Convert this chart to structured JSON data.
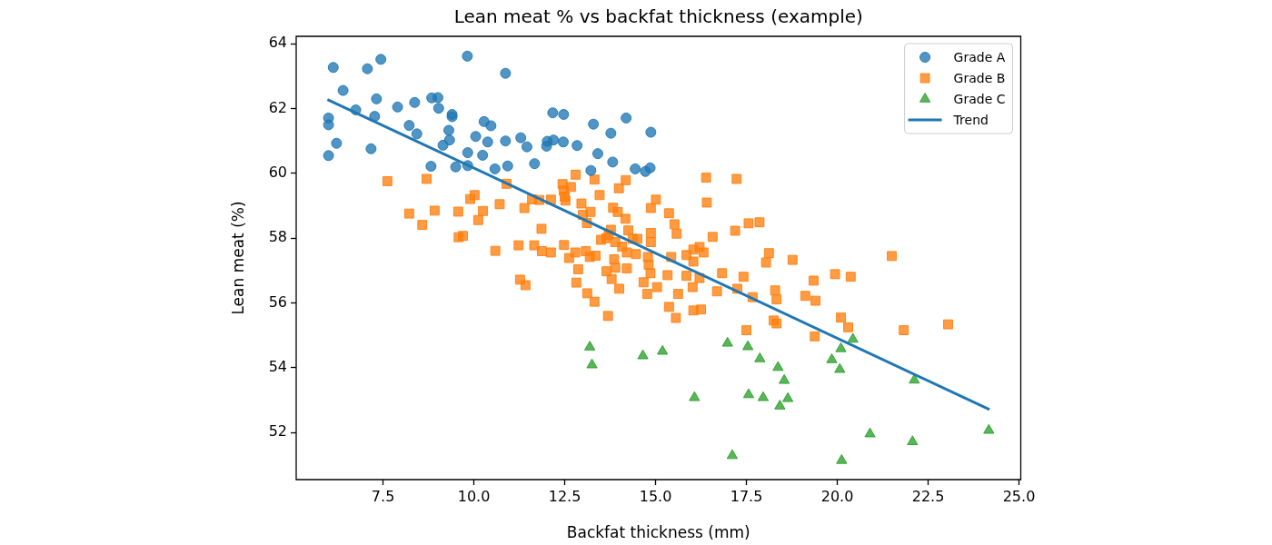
{
  "chart_data": {
    "type": "scatter",
    "title": "Lean meat % vs backfat thickness (example)",
    "xlabel": "Backfat thickness (mm)",
    "ylabel": "Lean meat (%)",
    "xlim": [
      5.11,
      25.05
    ],
    "xticks": [
      7.5,
      {
        "value": 10,
        "label": "10.0"
      },
      12.5,
      {
        "value": 15,
        "label": "15.0"
      },
      17.5,
      {
        "value": 20,
        "label": "20.0"
      },
      22.5,
      {
        "value": 25,
        "label": "25.0"
      }
    ],
    "ylim": [
      50.55,
      64.23
    ],
    "yticks": [
      52,
      54,
      56,
      58,
      60,
      62,
      64
    ],
    "grid": false,
    "legend": "top right",
    "series": [
      {
        "name": "Grade A",
        "color": "#1f77b4",
        "marker": "circle",
        "x": [
          6.13,
          7.07,
          7.44,
          9.82,
          10.87,
          6.4,
          7.32,
          7.9,
          8.37,
          8.84,
          9.01,
          9.03,
          9.4,
          9.4,
          6.75,
          7.27,
          6.0,
          6.0,
          8.22,
          8.43,
          9.31,
          10.28,
          10.47,
          9.33,
          9.15,
          10.05,
          10.38,
          10.87,
          11.29,
          11.46,
          6.22,
          7.17,
          6.0,
          9.83,
          10.24,
          8.82,
          9.5,
          9.83,
          10.58,
          10.93,
          11.67,
          12.17,
          12.47,
          13.29,
          14.19,
          13.77,
          14.87,
          12.0,
          12.02,
          12.19,
          12.46,
          12.84,
          13.41,
          13.82,
          13.22,
          14.44,
          14.72,
          14.85
        ],
        "values": [
          63.27,
          63.23,
          63.52,
          63.62,
          63.09,
          62.56,
          62.3,
          62.05,
          62.19,
          62.33,
          62.34,
          62.01,
          61.82,
          61.75,
          61.96,
          61.76,
          61.71,
          61.5,
          61.48,
          61.22,
          61.33,
          61.6,
          61.47,
          61.03,
          60.87,
          61.14,
          60.97,
          61.0,
          61.1,
          60.82,
          60.93,
          60.76,
          60.55,
          60.64,
          60.56,
          60.22,
          60.2,
          60.24,
          60.14,
          60.23,
          60.3,
          61.87,
          61.82,
          61.52,
          61.71,
          61.24,
          61.27,
          60.84,
          60.99,
          61.03,
          60.97,
          60.86,
          60.61,
          60.35,
          60.09,
          60.14,
          60.06,
          60.17
        ]
      },
      {
        "name": "Grade B",
        "color": "#ff7f0e",
        "marker": "square",
        "x": [
          7.62,
          8.7,
          10.9,
          10.02,
          9.9,
          8.22,
          8.92,
          9.57,
          10.25,
          8.58,
          10.12,
          10.71,
          11.39,
          9.58,
          9.7,
          10.59,
          11.23,
          11.66,
          11.27,
          11.42,
          12.8,
          13.32,
          14.18,
          12.44,
          12.67,
          12.47,
          12.5,
          12.52,
          13.99,
          13.46,
          11.6,
          11.8,
          12.12,
          12.96,
          13.21,
          13.0,
          13.11,
          13.83,
          13.96,
          14.17,
          14.87,
          15.01,
          15.37,
          15.52,
          15.58,
          16.39,
          17.23,
          16.41,
          16.57,
          17.19,
          17.56,
          17.86,
          11.86,
          13.77,
          13.71,
          14.25,
          13.5,
          13.64,
          13.89,
          14.37,
          14.5,
          14.87,
          14.87,
          12.48,
          12.79,
          13.08,
          13.35,
          12.62,
          13.19,
          14.08,
          14.21,
          14.46,
          13.86,
          14.79,
          15.43,
          15.85,
          16.04,
          16.21,
          16.32,
          11.87,
          12.12,
          18.12,
          18.04,
          13.89,
          14.21,
          14.81,
          14.86,
          12.87,
          13.65,
          13.79,
          12.82,
          14.0,
          14.67,
          15.33,
          15.04,
          14.77,
          15.62,
          15.85,
          16.02,
          16.21,
          16.04,
          13.12,
          13.32,
          13.69,
          15.37,
          15.56,
          16.04,
          16.25,
          16.69,
          16.83,
          17.42,
          17.25,
          17.67,
          18.29,
          18.33,
          18.25,
          18.33,
          17.5,
          18.77,
          21.5,
          19.35,
          19.94,
          20.37,
          19.12,
          19.4,
          20.1,
          20.3,
          19.38,
          21.83,
          23.05
        ],
        "values": [
          59.76,
          59.83,
          59.68,
          59.33,
          59.21,
          58.76,
          58.85,
          58.82,
          58.84,
          58.41,
          58.56,
          59.05,
          58.93,
          58.03,
          58.07,
          57.61,
          57.78,
          57.78,
          56.72,
          56.55,
          59.96,
          59.81,
          59.79,
          59.67,
          59.58,
          59.47,
          59.28,
          59.16,
          59.54,
          59.33,
          59.2,
          59.18,
          59.19,
          59.07,
          58.81,
          58.72,
          58.47,
          58.94,
          58.81,
          58.6,
          58.93,
          59.19,
          58.77,
          58.43,
          58.14,
          59.87,
          59.83,
          59.1,
          58.04,
          58.23,
          58.46,
          58.49,
          58.29,
          58.26,
          58.1,
          58.24,
          57.95,
          58.0,
          57.88,
          57.98,
          57.98,
          58.16,
          57.88,
          57.79,
          57.56,
          57.6,
          57.46,
          57.39,
          57.42,
          57.74,
          57.56,
          57.51,
          57.35,
          57.42,
          57.42,
          57.48,
          57.65,
          57.73,
          57.56,
          57.6,
          57.56,
          57.54,
          57.25,
          57.09,
          57.07,
          57.18,
          56.92,
          57.04,
          56.98,
          56.74,
          56.63,
          56.44,
          56.64,
          56.86,
          56.49,
          56.28,
          56.28,
          56.84,
          56.49,
          56.77,
          57.28,
          56.3,
          56.04,
          55.6,
          55.88,
          55.54,
          55.77,
          55.8,
          56.36,
          56.92,
          56.81,
          56.44,
          56.18,
          56.39,
          56.11,
          55.46,
          55.37,
          55.16,
          57.33,
          57.45,
          56.69,
          56.89,
          56.81,
          56.22,
          56.07,
          55.55,
          55.25,
          54.97,
          55.16,
          55.34
        ]
      },
      {
        "name": "Grade C",
        "color": "#2ca02c",
        "marker": "triangle",
        "x": [
          13.19,
          13.25,
          14.65,
          15.19,
          16.98,
          17.54,
          17.87,
          18.37,
          16.07,
          17.56,
          17.96,
          18.42,
          17.11,
          20.43,
          20.1,
          19.85,
          20.07,
          18.54,
          18.64,
          22.12,
          20.9,
          22.07,
          20.12,
          24.17
        ],
        "values": [
          54.64,
          54.09,
          54.37,
          54.51,
          54.76,
          54.65,
          54.28,
          54.01,
          53.08,
          53.17,
          53.08,
          52.82,
          51.29,
          54.88,
          54.59,
          54.25,
          53.95,
          53.61,
          53.05,
          53.62,
          51.96,
          51.72,
          51.14,
          52.07
        ]
      },
      {
        "name": "Trend",
        "type": "line",
        "color": "#1f77b4",
        "x": [
          5.97,
          24.19
        ],
        "values": [
          62.28,
          52.71
        ]
      }
    ]
  }
}
